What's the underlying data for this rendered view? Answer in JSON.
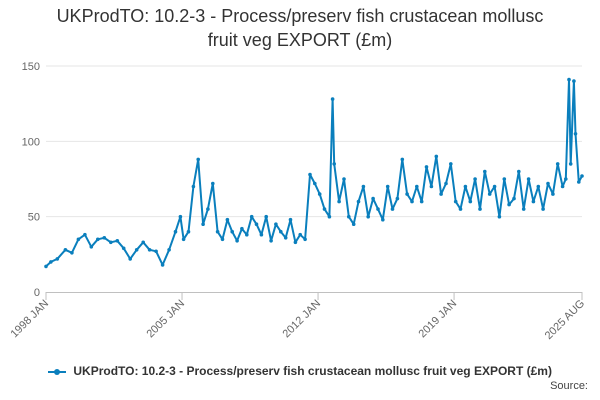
{
  "title_lines": [
    "UKProdTO: 10.2-3 - Process/preserv fish crustacean mollusc",
    "fruit veg EXPORT (£m)"
  ],
  "source_label": "Source:",
  "colors": {
    "series": "#0a7fbd",
    "grid": "#e6e6e6",
    "axis_text": "#666666"
  },
  "chart_data": {
    "type": "line",
    "title": "UKProdTO: 10.2-3 - Process/preserv fish crustacean mollusc fruit veg EXPORT (£m)",
    "xlabel": "",
    "ylabel": "",
    "xlim": [
      "1998 JAN",
      "2025 AUG"
    ],
    "ylim": [
      0,
      150
    ],
    "y_ticks": [
      0,
      50,
      100,
      150
    ],
    "x_ticks": [
      "1998 JAN",
      "2005 JAN",
      "2012 JAN",
      "2019 JAN",
      "2025 AUG"
    ],
    "grid": "horizontal",
    "legend_position": "bottom",
    "series": [
      {
        "name": "UKProdTO: 10.2-3 - Process/preserv fish crustacean mollusc fruit veg EXPORT (£m)",
        "points": [
          [
            "1998 JAN",
            17
          ],
          [
            "1998 APR",
            20
          ],
          [
            "1998 AUG",
            22
          ],
          [
            "1999 JAN",
            28
          ],
          [
            "1999 MAY",
            26
          ],
          [
            "1999 SEP",
            35
          ],
          [
            "2000 JAN",
            38
          ],
          [
            "2000 MAY",
            30
          ],
          [
            "2000 SEP",
            35
          ],
          [
            "2001 JAN",
            36
          ],
          [
            "2001 MAY",
            33
          ],
          [
            "2001 SEP",
            34
          ],
          [
            "2002 JAN",
            29
          ],
          [
            "2002 MAY",
            22
          ],
          [
            "2002 SEP",
            28
          ],
          [
            "2003 JAN",
            33
          ],
          [
            "2003 MAY",
            28
          ],
          [
            "2003 SEP",
            27
          ],
          [
            "2004 JAN",
            18
          ],
          [
            "2004 MAY",
            28
          ],
          [
            "2004 SEP",
            40
          ],
          [
            "2004 DEC",
            50
          ],
          [
            "2005 FEB",
            35
          ],
          [
            "2005 MAY",
            40
          ],
          [
            "2005 AUG",
            70
          ],
          [
            "2005 NOV",
            88
          ],
          [
            "2006 FEB",
            45
          ],
          [
            "2006 MAY",
            55
          ],
          [
            "2006 AUG",
            72
          ],
          [
            "2006 NOV",
            40
          ],
          [
            "2007 FEB",
            35
          ],
          [
            "2007 MAY",
            48
          ],
          [
            "2007 AUG",
            40
          ],
          [
            "2007 NOV",
            34
          ],
          [
            "2008 FEB",
            42
          ],
          [
            "2008 MAY",
            38
          ],
          [
            "2008 AUG",
            50
          ],
          [
            "2008 NOV",
            45
          ],
          [
            "2009 FEB",
            38
          ],
          [
            "2009 MAY",
            50
          ],
          [
            "2009 AUG",
            34
          ],
          [
            "2009 NOV",
            45
          ],
          [
            "2010 FEB",
            40
          ],
          [
            "2010 MAY",
            36
          ],
          [
            "2010 AUG",
            48
          ],
          [
            "2010 NOV",
            33
          ],
          [
            "2011 FEB",
            38
          ],
          [
            "2011 MAY",
            35
          ],
          [
            "2011 AUG",
            78
          ],
          [
            "2011 NOV",
            72
          ],
          [
            "2012 FEB",
            65
          ],
          [
            "2012 MAY",
            55
          ],
          [
            "2012 AUG",
            50
          ],
          [
            "2012 OCT",
            128
          ],
          [
            "2012 NOV",
            85
          ],
          [
            "2013 FEB",
            60
          ],
          [
            "2013 MAY",
            75
          ],
          [
            "2013 AUG",
            50
          ],
          [
            "2013 NOV",
            45
          ],
          [
            "2014 FEB",
            60
          ],
          [
            "2014 MAY",
            70
          ],
          [
            "2014 AUG",
            50
          ],
          [
            "2014 NOV",
            62
          ],
          [
            "2015 FEB",
            55
          ],
          [
            "2015 MAY",
            48
          ],
          [
            "2015 AUG",
            70
          ],
          [
            "2015 NOV",
            55
          ],
          [
            "2016 FEB",
            62
          ],
          [
            "2016 MAY",
            88
          ],
          [
            "2016 AUG",
            65
          ],
          [
            "2016 NOV",
            60
          ],
          [
            "2017 FEB",
            70
          ],
          [
            "2017 MAY",
            60
          ],
          [
            "2017 AUG",
            83
          ],
          [
            "2017 NOV",
            70
          ],
          [
            "2018 FEB",
            90
          ],
          [
            "2018 MAY",
            65
          ],
          [
            "2018 AUG",
            72
          ],
          [
            "2018 NOV",
            85
          ],
          [
            "2019 FEB",
            60
          ],
          [
            "2019 MAY",
            55
          ],
          [
            "2019 AUG",
            70
          ],
          [
            "2019 NOV",
            60
          ],
          [
            "2020 FEB",
            75
          ],
          [
            "2020 MAY",
            55
          ],
          [
            "2020 AUG",
            80
          ],
          [
            "2020 NOV",
            65
          ],
          [
            "2021 FEB",
            70
          ],
          [
            "2021 MAY",
            50
          ],
          [
            "2021 AUG",
            75
          ],
          [
            "2021 NOV",
            58
          ],
          [
            "2022 FEB",
            62
          ],
          [
            "2022 MAY",
            80
          ],
          [
            "2022 AUG",
            55
          ],
          [
            "2022 NOV",
            75
          ],
          [
            "2023 FEB",
            60
          ],
          [
            "2023 MAY",
            70
          ],
          [
            "2023 AUG",
            55
          ],
          [
            "2023 NOV",
            72
          ],
          [
            "2024 FEB",
            65
          ],
          [
            "2024 MAY",
            85
          ],
          [
            "2024 AUG",
            70
          ],
          [
            "2024 OCT",
            75
          ],
          [
            "2024 DEC",
            141
          ],
          [
            "2025 JAN",
            85
          ],
          [
            "2025 MAR",
            140
          ],
          [
            "2025 APR",
            105
          ],
          [
            "2025 JUN",
            73
          ],
          [
            "2025 AUG",
            77
          ]
        ]
      }
    ]
  }
}
